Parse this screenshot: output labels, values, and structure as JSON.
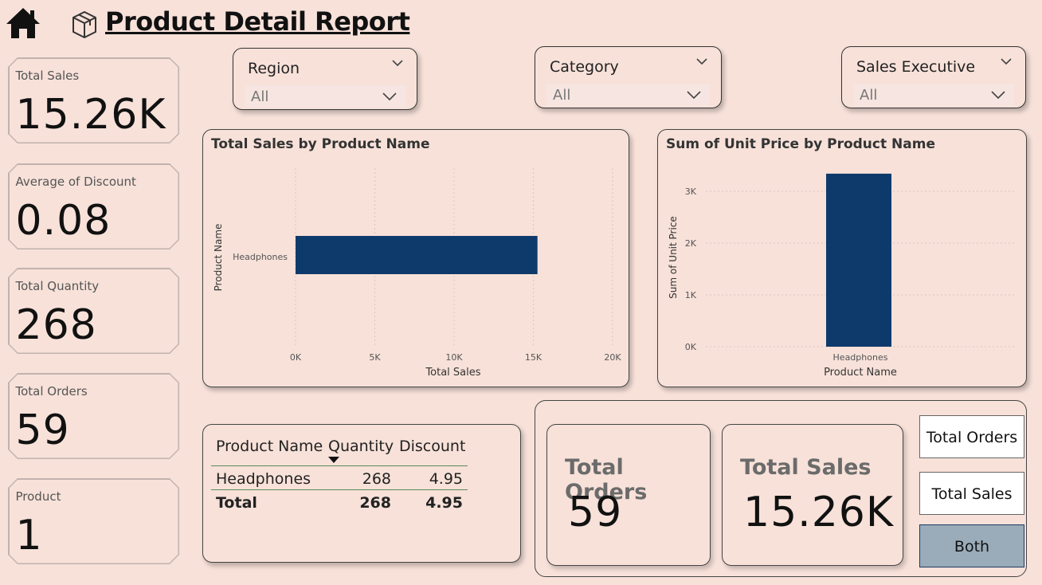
{
  "header": {
    "title": "Product Detail Report",
    "home_icon": "home-icon",
    "box_icon": "package-icon"
  },
  "kpis": [
    {
      "label": "Total Sales",
      "value": "15.26K"
    },
    {
      "label": "Average of Discount",
      "value": "0.08"
    },
    {
      "label": "Total Quantity",
      "value": "268"
    },
    {
      "label": "Total Orders",
      "value": "59"
    },
    {
      "label": "Product",
      "value": "1"
    }
  ],
  "slicers": [
    {
      "title": "Region",
      "value": "All"
    },
    {
      "title": "Category",
      "value": "All"
    },
    {
      "title": "Sales Executive",
      "value": "All"
    }
  ],
  "chart_data": [
    {
      "type": "bar",
      "orientation": "horizontal",
      "title": "Total Sales by Product Name",
      "xlabel": "Total Sales",
      "ylabel": "Product Name",
      "categories": [
        "Headphones"
      ],
      "values": [
        15260
      ],
      "xlim": [
        0,
        20000
      ],
      "ticks": [
        "0K",
        "5K",
        "10K",
        "15K",
        "20K"
      ],
      "tick_values": [
        0,
        5000,
        10000,
        15000,
        20000
      ],
      "color": "#0e3a6b",
      "grid": true
    },
    {
      "type": "bar",
      "orientation": "vertical",
      "title": "Sum of Unit Price by Product Name",
      "xlabel": "Product Name",
      "ylabel": "Sum of Unit Price",
      "categories": [
        "Headphones"
      ],
      "values": [
        3340
      ],
      "ylim": [
        0,
        3500
      ],
      "ticks": [
        "0K",
        "1K",
        "2K",
        "3K"
      ],
      "tick_values": [
        0,
        1000,
        2000,
        3000
      ],
      "color": "#0e3a6b",
      "grid": true
    }
  ],
  "table": {
    "columns": [
      "Product Name",
      "Quantity",
      "Discount"
    ],
    "rows": [
      {
        "name": "Headphones",
        "quantity": "268",
        "discount": "4.95"
      }
    ],
    "total": {
      "name": "Total",
      "quantity": "268",
      "discount": "4.95"
    }
  },
  "cards": [
    {
      "label": "Total Orders",
      "value": "59"
    },
    {
      "label": "Total Sales",
      "value": "15.26K"
    }
  ],
  "toggles": [
    {
      "label": "Total Orders",
      "selected": false
    },
    {
      "label": "Total Sales",
      "selected": false
    },
    {
      "label": "Both",
      "selected": true
    }
  ],
  "colors": {
    "background": "#f7e1d9",
    "bar": "#0e3a6b",
    "toggle_selected": "#9aabb9"
  }
}
